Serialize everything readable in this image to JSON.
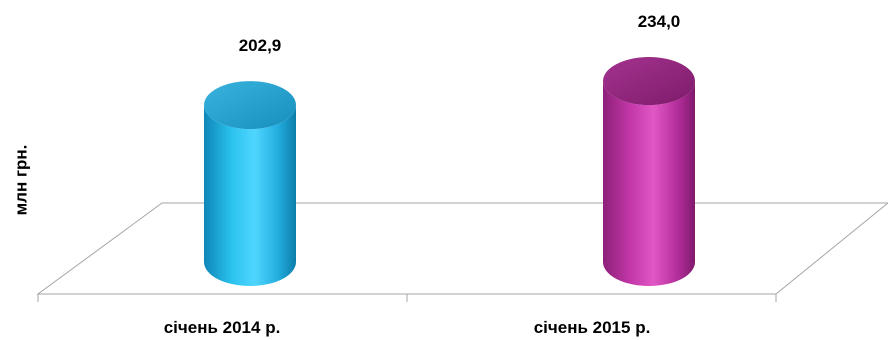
{
  "chart_data": {
    "type": "bar",
    "categories": [
      "січень 2014 р.",
      "січень 2015 р."
    ],
    "values": [
      202.9,
      234.0
    ],
    "value_labels": [
      "202,9",
      "234,0"
    ],
    "title": "",
    "xlabel": "",
    "ylabel": "млн грн.",
    "ylim": [
      0,
      250
    ],
    "grid": false,
    "legend": "none",
    "colors": [
      "#2cc8f0",
      "#c63aab"
    ]
  }
}
